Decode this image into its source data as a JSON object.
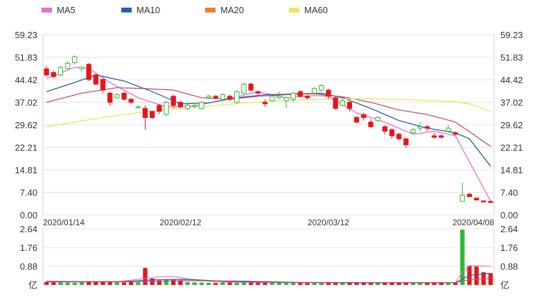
{
  "legend": [
    {
      "name": "MA5",
      "color": "#e46fd6"
    },
    {
      "name": "MA10",
      "color": "#1f5fb5"
    },
    {
      "name": "MA20",
      "color": "#f07a32"
    },
    {
      "name": "MA60",
      "color": "#f3e35a"
    }
  ],
  "price_unit": "",
  "volume_unit": "亿",
  "colors": {
    "up": "#e8141c",
    "down": "#2fba2f",
    "ma20_line": "#c0506a",
    "grid": "#e6e6e6",
    "axis_text": "#333333"
  },
  "chart_data": [
    {
      "type": "candlestick",
      "title": "",
      "ylim": [
        0,
        59.23
      ],
      "y_ticks": [
        "59.23",
        "51.83",
        "44.42",
        "37.02",
        "29.62",
        "22.21",
        "14.81",
        "7.40",
        "0.00"
      ],
      "x_tick_labels": [
        {
          "index": 0,
          "label": "2020/01/14"
        },
        {
          "index": 19,
          "label": "2020/02/12"
        },
        {
          "index": 40,
          "label": "2020/03/12"
        },
        {
          "index": 58,
          "label": "2020/04/08"
        }
      ],
      "candles": [
        [
          48.0,
          46.0,
          49.0,
          45.5
        ],
        [
          46.8,
          45.5,
          47.5,
          44.8
        ],
        [
          46.0,
          48.5,
          49.0,
          45.5
        ],
        [
          48.2,
          49.8,
          50.5,
          47.5
        ],
        [
          50.0,
          52.0,
          52.5,
          49.5
        ],
        [
          48.0,
          48.5,
          49.0,
          47.0
        ],
        [
          49.5,
          44.5,
          50.0,
          44.0
        ],
        [
          46.0,
          43.0,
          46.5,
          42.5
        ],
        [
          44.5,
          41.0,
          45.0,
          40.0
        ],
        [
          40.0,
          37.0,
          40.5,
          36.0
        ],
        [
          38.5,
          39.5,
          40.0,
          38.0
        ],
        [
          40.0,
          38.0,
          40.5,
          37.5
        ],
        [
          38.0,
          37.0,
          38.5,
          36.5
        ],
        [
          35.5,
          35.5,
          36.0,
          35.5
        ],
        [
          35.0,
          32.0,
          36.0,
          28.0
        ],
        [
          34.0,
          32.0,
          34.0,
          31.5
        ],
        [
          36.0,
          34.0,
          36.5,
          33.0
        ],
        [
          33.0,
          37.0,
          37.5,
          32.5
        ],
        [
          39.0,
          36.0,
          39.5,
          35.0
        ],
        [
          37.0,
          35.5,
          37.5,
          35.0
        ],
        [
          35.0,
          36.0,
          36.5,
          34.5
        ],
        [
          36.0,
          36.0,
          36.5,
          35.0
        ],
        [
          35.0,
          37.0,
          37.5,
          34.5
        ],
        [
          38.5,
          39.0,
          39.5,
          38.0
        ],
        [
          39.0,
          38.5,
          39.5,
          38.0
        ],
        [
          38.0,
          39.5,
          40.0,
          37.5
        ],
        [
          39.0,
          38.0,
          39.5,
          37.5
        ],
        [
          37.0,
          40.5,
          41.0,
          36.5
        ],
        [
          40.0,
          43.0,
          43.5,
          39.5
        ],
        [
          43.0,
          41.0,
          43.5,
          40.5
        ],
        [
          40.5,
          40.0,
          41.0,
          39.5
        ],
        [
          37.0,
          36.5,
          38.0,
          35.5
        ],
        [
          37.5,
          39.0,
          39.5,
          37.0
        ],
        [
          38.5,
          39.0,
          40.5,
          38.0
        ],
        [
          37.5,
          38.5,
          39.0,
          35.0
        ],
        [
          38.0,
          40.0,
          40.5,
          37.0
        ],
        [
          40.5,
          39.0,
          41.0,
          38.5
        ],
        [
          39.0,
          38.5,
          39.5,
          38.0
        ],
        [
          40.0,
          41.5,
          42.0,
          39.5
        ],
        [
          41.0,
          42.5,
          43.0,
          40.5
        ],
        [
          41.0,
          39.0,
          41.5,
          38.0
        ],
        [
          38.5,
          35.0,
          39.0,
          34.5
        ],
        [
          36.0,
          37.5,
          38.0,
          35.5
        ],
        [
          37.0,
          35.0,
          37.5,
          34.0
        ],
        [
          32.0,
          30.5,
          32.5,
          30.0
        ],
        [
          33.0,
          32.0,
          33.5,
          31.0
        ],
        [
          30.5,
          29.0,
          31.5,
          28.5
        ],
        [
          31.0,
          32.0,
          32.5,
          30.5
        ],
        [
          29.0,
          27.5,
          29.5,
          26.5
        ],
        [
          28.0,
          26.0,
          28.5,
          25.0
        ],
        [
          26.5,
          25.0,
          27.0,
          24.5
        ],
        [
          25.0,
          23.0,
          25.5,
          22.0
        ],
        [
          27.0,
          28.0,
          28.5,
          26.5
        ],
        [
          28.5,
          29.0,
          30.5,
          27.5
        ],
        [
          29.0,
          28.5,
          29.5,
          27.5
        ],
        [
          26.0,
          25.5,
          27.0,
          25.0
        ],
        [
          26.0,
          25.5,
          26.5,
          25.0
        ],
        [
          27.5,
          28.5,
          29.5,
          27.0
        ],
        [
          27.0,
          26.5,
          27.5,
          26.0
        ],
        [
          4.5,
          6.5,
          10.5,
          4.5
        ],
        [
          6.8,
          6.0,
          7.3,
          5.8
        ],
        [
          5.5,
          4.9,
          5.8,
          4.7
        ],
        [
          4.6,
          4.4,
          4.8,
          4.2
        ],
        [
          4.4,
          4.2,
          4.6,
          4.1
        ]
      ],
      "series": [
        {
          "name": "MA5",
          "color": "#e46fd6",
          "points": [
            [
              0,
              44.8
            ],
            [
              4,
              48.5
            ],
            [
              6,
              48.2
            ],
            [
              9,
              43.5
            ],
            [
              13,
              38.5
            ],
            [
              17,
              35.5
            ],
            [
              21,
              35.8
            ],
            [
              26,
              38.2
            ],
            [
              30,
              40.5
            ],
            [
              34,
              38.5
            ],
            [
              38,
              39.2
            ],
            [
              40,
              39.0
            ],
            [
              44,
              33.5
            ],
            [
              48,
              30.5
            ],
            [
              52,
              26.5
            ],
            [
              55,
              27.5
            ],
            [
              58,
              26.0
            ],
            [
              63,
              4.5
            ]
          ]
        },
        {
          "name": "MA10",
          "color": "#1f5fb5",
          "points": [
            [
              0,
              40.5
            ],
            [
              4,
              43.5
            ],
            [
              7,
              46.0
            ],
            [
              11,
              44.0
            ],
            [
              15,
              40.5
            ],
            [
              19,
              36.5
            ],
            [
              23,
              36.8
            ],
            [
              27,
              38.5
            ],
            [
              31,
              39.5
            ],
            [
              35,
              39.7
            ],
            [
              39,
              40.0
            ],
            [
              42,
              38.5
            ],
            [
              46,
              35.0
            ],
            [
              50,
              31.0
            ],
            [
              54,
              28.5
            ],
            [
              58,
              27.0
            ],
            [
              60,
              25.0
            ],
            [
              63,
              16.0
            ]
          ]
        },
        {
          "name": "MA20",
          "color": "#c0506a",
          "points": [
            [
              0,
              37.0
            ],
            [
              5,
              40.0
            ],
            [
              10,
              41.8
            ],
            [
              14,
              41.5
            ],
            [
              18,
              41.0
            ],
            [
              22,
              38.5
            ],
            [
              26,
              38.0
            ],
            [
              30,
              39.0
            ],
            [
              34,
              39.5
            ],
            [
              38,
              39.8
            ],
            [
              42,
              38.8
            ],
            [
              46,
              37.0
            ],
            [
              50,
              34.5
            ],
            [
              54,
              33.0
            ],
            [
              58,
              30.5
            ],
            [
              63,
              22.5
            ]
          ]
        },
        {
          "name": "MA60",
          "color": "#f3e35a",
          "points": [
            [
              0,
              29.0
            ],
            [
              8,
              32.0
            ],
            [
              16,
              34.5
            ],
            [
              24,
              36.0
            ],
            [
              32,
              37.5
            ],
            [
              40,
              38.0
            ],
            [
              46,
              38.2
            ],
            [
              52,
              37.8
            ],
            [
              58,
              37.2
            ],
            [
              60,
              36.5
            ],
            [
              63,
              34.0
            ]
          ]
        }
      ]
    },
    {
      "type": "bar",
      "title": "",
      "ylabel": "亿",
      "ylim": [
        0,
        2.64
      ],
      "y_ticks": [
        "2.64",
        "1.76",
        "0.88",
        "亿"
      ],
      "values": [
        0.14,
        0.12,
        0.12,
        0.11,
        0.1,
        0.12,
        0.14,
        0.16,
        0.15,
        0.16,
        0.12,
        0.12,
        0.14,
        0.12,
        0.8,
        0.3,
        0.22,
        0.24,
        0.25,
        0.22,
        0.13,
        0.12,
        0.11,
        0.1,
        0.09,
        0.12,
        0.11,
        0.1,
        0.12,
        0.14,
        0.11,
        0.12,
        0.1,
        0.1,
        0.09,
        0.1,
        0.1,
        0.09,
        0.1,
        0.1,
        0.11,
        0.1,
        0.09,
        0.09,
        0.1,
        0.09,
        0.08,
        0.09,
        0.09,
        0.1,
        0.09,
        0.09,
        0.09,
        0.1,
        0.12,
        0.11,
        0.1,
        0.11,
        0.1,
        2.6,
        0.9,
        0.86,
        0.6,
        0.55
      ],
      "series": [
        {
          "name": "MA5",
          "color": "#e46fd6",
          "points": [
            [
              0,
              0.18
            ],
            [
              5,
              0.16
            ],
            [
              10,
              0.15
            ],
            [
              14,
              0.3
            ],
            [
              16,
              0.38
            ],
            [
              18,
              0.4
            ],
            [
              20,
              0.28
            ],
            [
              24,
              0.14
            ],
            [
              30,
              0.12
            ],
            [
              40,
              0.1
            ],
            [
              50,
              0.1
            ],
            [
              58,
              0.1
            ],
            [
              59,
              0.6
            ],
            [
              60,
              0.9
            ],
            [
              63,
              0.88
            ]
          ]
        },
        {
          "name": "MA10",
          "color": "#1f5fb5",
          "points": [
            [
              0,
              0.14
            ],
            [
              10,
              0.14
            ],
            [
              16,
              0.25
            ],
            [
              20,
              0.26
            ],
            [
              26,
              0.16
            ],
            [
              34,
              0.12
            ],
            [
              44,
              0.1
            ],
            [
              58,
              0.1
            ],
            [
              60,
              0.45
            ],
            [
              63,
              0.55
            ]
          ]
        },
        {
          "name": "MA20",
          "color": "#c0506a",
          "points": [
            [
              0,
              0.16
            ],
            [
              12,
              0.15
            ],
            [
              20,
              0.2
            ],
            [
              28,
              0.18
            ],
            [
              36,
              0.12
            ],
            [
              50,
              0.11
            ],
            [
              58,
              0.11
            ],
            [
              60,
              0.25
            ],
            [
              63,
              0.3
            ]
          ]
        }
      ]
    }
  ]
}
